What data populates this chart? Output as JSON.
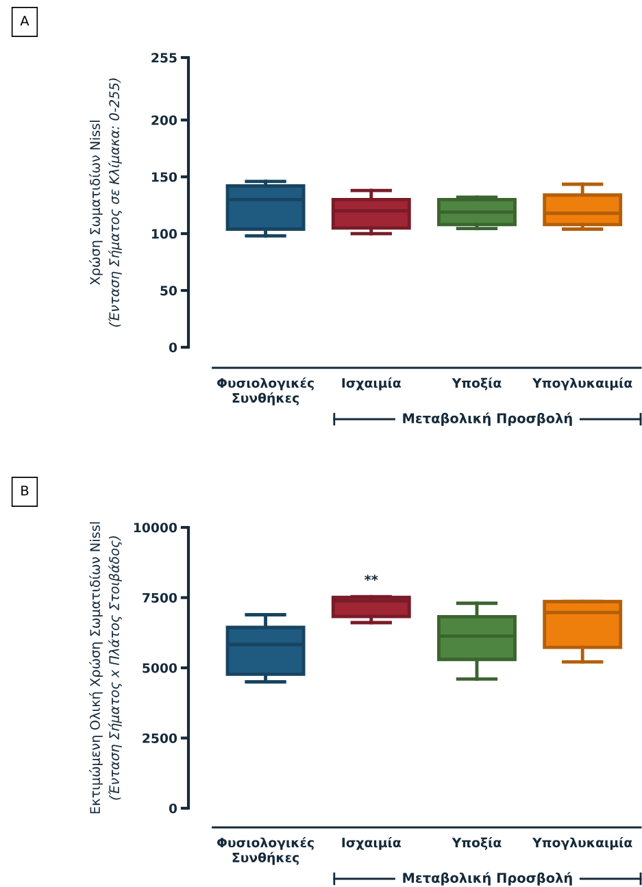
{
  "chart_data": [
    {
      "type": "box",
      "ylabel": "Χρώση Σωματιδίων Nissl\n(Ένταση Σήματος σε Κλίμακα: 0-255)",
      "categories": [
        "Φυσιολογικές\nΣυνθήκες",
        "Ισχαιμία",
        "Υποξία",
        "Υπογλυκαιμία"
      ],
      "boxes": [
        {
          "low": 98,
          "q1": 104,
          "median": 130,
          "q3": 142,
          "high": 146
        },
        {
          "low": 100,
          "q1": 105,
          "median": 120,
          "q3": 130,
          "high": 138
        },
        {
          "low": 104.5,
          "q1": 108,
          "median": 119,
          "q3": 130,
          "high": 132
        },
        {
          "low": 104,
          "q1": 108,
          "median": 118,
          "q3": 134,
          "high": 143.5
        }
      ],
      "colors": [
        "#1f5a80",
        "#a02535",
        "#4e8540",
        "#ef7f0d"
      ],
      "ylim": [
        0,
        255
      ],
      "yticks": [
        0,
        50,
        100,
        150,
        200,
        255
      ],
      "grid": false,
      "annotations": [
        "A",
        "Μεταβολική Προσβολή"
      ]
    },
    {
      "type": "box",
      "ylabel": "Εκτιμώμενη Ολική Χρώση Σωματιδίων Nissl\n(Ένταση Σήματος x Πλάτος Στοιβάδος)",
      "categories": [
        "Φυσιολογικές\nΣυνθήκες",
        "Ισχαιμία",
        "Υποξία",
        "Υπογλυκαιμία"
      ],
      "boxes": [
        {
          "low": 4500,
          "q1": 4770,
          "median": 5830,
          "q3": 6440,
          "high": 6890
        },
        {
          "low": 6610,
          "q1": 6830,
          "median": 7380,
          "q3": 7510,
          "high": 7530
        },
        {
          "low": 4600,
          "q1": 5300,
          "median": 6130,
          "q3": 6820,
          "high": 7300
        },
        {
          "low": 5210,
          "q1": 5730,
          "median": 6970,
          "q3": 7360,
          "high": 7360
        }
      ],
      "colors": [
        "#1f5a80",
        "#a02535",
        "#4e8540",
        "#ef7f0d"
      ],
      "ylim": [
        0,
        10000
      ],
      "yticks": [
        0,
        2500,
        5000,
        7500,
        10000
      ],
      "grid": false,
      "annotations": [
        "B",
        "Μεταβολική Προσβολή",
        "**"
      ]
    }
  ]
}
